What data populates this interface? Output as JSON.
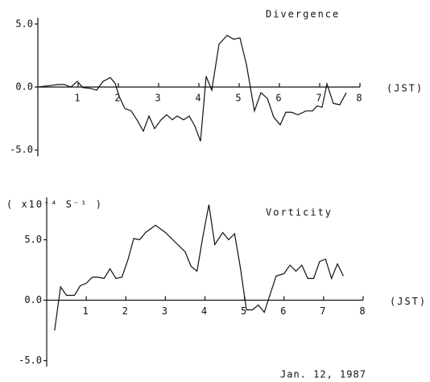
{
  "chart_data": [
    {
      "type": "line",
      "title": "Divergence",
      "x_label": "(JST)",
      "x": [
        0,
        0.26,
        0.5,
        0.66,
        0.82,
        0.98,
        1.12,
        1.3,
        1.46,
        1.62,
        1.8,
        1.92,
        2.02,
        2.16,
        2.32,
        2.48,
        2.62,
        2.76,
        2.9,
        3.06,
        3.2,
        3.34,
        3.46,
        3.62,
        3.76,
        3.9,
        4.04,
        4.18,
        4.32,
        4.5,
        4.7,
        4.86,
        5.02,
        5.18,
        5.38,
        5.54,
        5.7,
        5.86,
        6.02,
        6.16,
        6.3,
        6.46,
        6.66,
        6.82,
        6.94,
        7.06,
        7.18,
        7.34,
        7.5,
        7.66
      ],
      "values": [
        0,
        0.1,
        0.2,
        0.2,
        0,
        0.45,
        -0.05,
        -0.1,
        -0.25,
        0.45,
        0.75,
        0.3,
        -0.75,
        -1.7,
        -1.9,
        -2.7,
        -3.5,
        -2.3,
        -3.3,
        -2.6,
        -2.2,
        -2.6,
        -2.3,
        -2.6,
        -2.3,
        -3.1,
        -4.3,
        0.85,
        -0.25,
        3.4,
        4.1,
        3.8,
        3.9,
        1.8,
        -1.9,
        -0.45,
        -0.9,
        -2.4,
        -3.0,
        -2.0,
        -2.0,
        -2.2,
        -1.9,
        -1.9,
        -1.5,
        -1.6,
        0.25,
        -1.3,
        -1.4,
        -0.45
      ],
      "color": "#111111",
      "xlim": [
        0,
        8
      ],
      "xticks": [
        1,
        2,
        3,
        4,
        5,
        6,
        7,
        8
      ],
      "ylim": [
        -5.5,
        5.5
      ],
      "yticks": [
        {
          "value": 5,
          "label": "5.0"
        },
        {
          "value": 0,
          "label": "0.0"
        },
        {
          "value": -5,
          "label": "-5.0"
        }
      ]
    },
    {
      "type": "line",
      "title": "Vorticity",
      "x_label": "(JST)",
      "ylabel": "( x10⁻⁴ S⁻¹ )",
      "annotation": "Jan. 12, 1987",
      "x": [
        0.2,
        0.35,
        0.5,
        0.7,
        0.85,
        1.0,
        1.15,
        1.3,
        1.45,
        1.6,
        1.75,
        1.9,
        2.05,
        2.2,
        2.35,
        2.5,
        2.75,
        3.0,
        3.25,
        3.5,
        3.65,
        3.8,
        3.95,
        4.1,
        4.25,
        4.45,
        4.6,
        4.75,
        4.9,
        5.05,
        5.2,
        5.35,
        5.5,
        5.8,
        6.0,
        6.15,
        6.3,
        6.45,
        6.6,
        6.75,
        6.9,
        7.05,
        7.2,
        7.35,
        7.5
      ],
      "values": [
        -2.5,
        1.1,
        0.4,
        0.4,
        1.2,
        1.4,
        1.9,
        1.9,
        1.8,
        2.6,
        1.8,
        1.9,
        3.3,
        5.1,
        5.0,
        5.6,
        6.2,
        5.6,
        4.8,
        4.0,
        2.8,
        2.4,
        5.3,
        7.9,
        4.6,
        5.6,
        5.0,
        5.5,
        2.6,
        -0.8,
        -0.8,
        -0.4,
        -1.0,
        2.0,
        2.2,
        2.9,
        2.4,
        2.9,
        1.8,
        1.8,
        3.2,
        3.4,
        1.8,
        3.0,
        2.0
      ],
      "color": "#111111",
      "xlim": [
        0,
        8
      ],
      "xticks": [
        1,
        2,
        3,
        4,
        5,
        6,
        7,
        8
      ],
      "ylim": [
        -5.5,
        8.5
      ],
      "yticks": [
        {
          "value": 5,
          "label": "5.0"
        },
        {
          "value": 0,
          "label": "0.0"
        },
        {
          "value": -5,
          "label": "-5.0"
        }
      ]
    }
  ]
}
